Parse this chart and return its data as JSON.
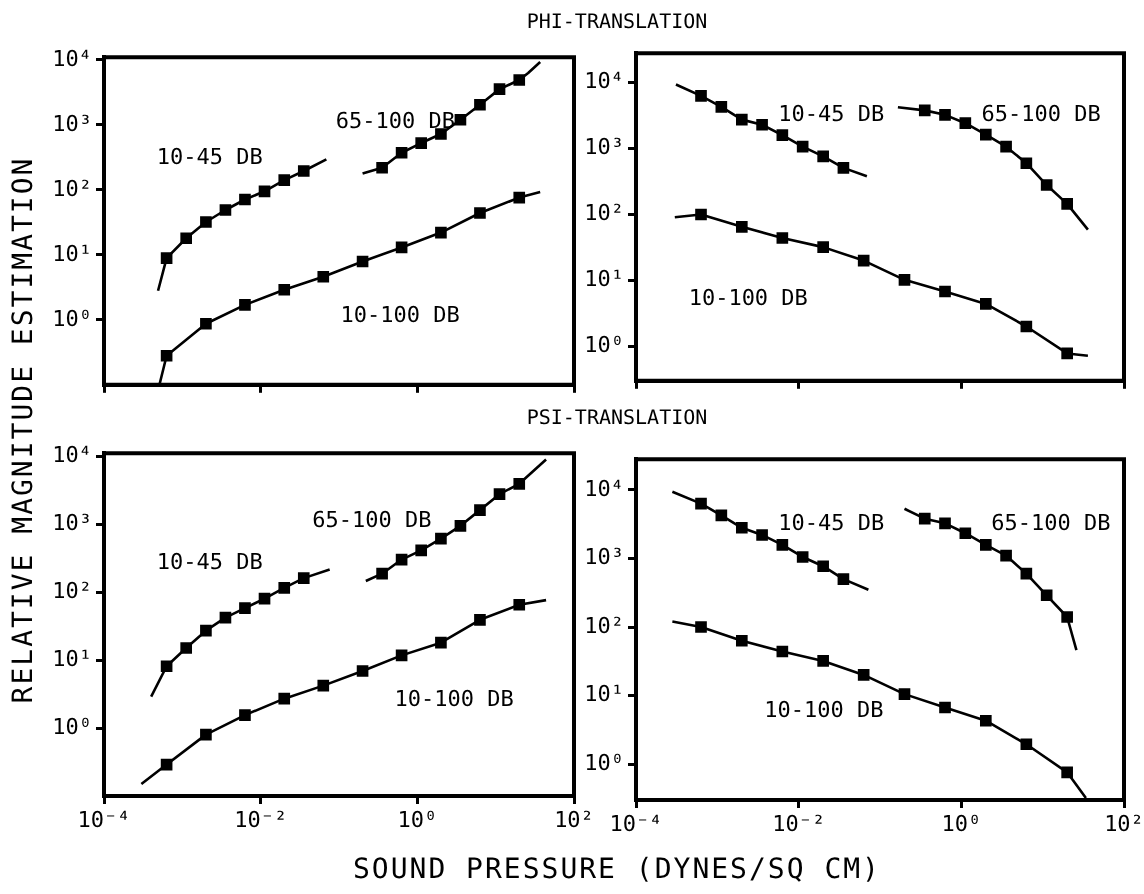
{
  "chart_data": [
    {
      "type": "scatter",
      "title": "PHI-TRANSLATION",
      "ylabel": "RELATIVE MAGNITUDE ESTIMATION",
      "log": "xy",
      "grid": false,
      "legend": false,
      "tick_labels": "y",
      "xlim": [
        0.0001,
        100
      ],
      "xticks": [
        {
          "value": 0.0001,
          "label": null
        },
        {
          "value": 0.01,
          "label": null
        },
        {
          "value": 1,
          "label": null
        },
        {
          "value": 100,
          "label": null
        }
      ],
      "ylim": [
        0.1,
        11000
      ],
      "yticks": [
        {
          "value": 1,
          "label": "10⁰"
        },
        {
          "value": 10,
          "label": "10¹"
        },
        {
          "value": 100,
          "label": "10²"
        },
        {
          "value": 1000,
          "label": "10³"
        },
        {
          "value": 10000,
          "label": "10⁴"
        }
      ],
      "series": [
        {
          "name": "10-45 DB",
          "marker": "square",
          "color": "#000000",
          "x": [
            0.00063,
            0.00112,
            0.002,
            0.00355,
            0.0063,
            0.0112,
            0.02,
            0.0355
          ],
          "values": [
            8.9,
            18,
            32,
            49,
            71,
            95,
            141,
            195
          ]
        },
        {
          "type": "line",
          "marker": "none",
          "color": "#000000",
          "x": [
            0.00049,
            0.00063,
            0.00112,
            0.002,
            0.00355,
            0.0063,
            0.0112,
            0.02,
            0.0355,
            0.069
          ],
          "values": [
            2.8,
            8.9,
            18,
            32,
            49,
            71,
            95,
            141,
            195,
            295
          ]
        },
        {
          "name": "65-100 DB",
          "marker": "square",
          "color": "#000000",
          "x": [
            0.355,
            0.63,
            1.12,
            2,
            3.55,
            6.3,
            11.2,
            20
          ],
          "values": [
            219,
            372,
            525,
            724,
            1200,
            2040,
            3550,
            4900
          ]
        },
        {
          "type": "line",
          "marker": "none",
          "color": "#000000",
          "x": [
            0.2,
            0.355,
            0.63,
            1.12,
            2,
            3.55,
            6.3,
            11.2,
            20,
            26,
            37
          ],
          "values": [
            178,
            219,
            372,
            525,
            724,
            1200,
            2040,
            3550,
            4900,
            6300,
            9300
          ]
        },
        {
          "name": "10-100 DB",
          "marker": "square",
          "color": "#000000",
          "x": [
            0.00063,
            0.002,
            0.0063,
            0.02,
            0.063,
            0.2,
            0.63,
            2,
            6.3,
            20
          ],
          "values": [
            0.28,
            0.87,
            1.7,
            2.9,
            4.6,
            7.9,
            13,
            22,
            44,
            76
          ]
        },
        {
          "type": "line",
          "marker": "none",
          "color": "#000000",
          "x": [
            0.00051,
            0.00063,
            0.002,
            0.0063,
            0.02,
            0.063,
            0.2,
            0.63,
            2,
            6.3,
            20,
            37
          ],
          "values": [
            0.1,
            0.28,
            0.87,
            1.7,
            2.9,
            4.6,
            7.9,
            13,
            22,
            44,
            76,
            93
          ]
        }
      ]
    },
    {
      "type": "scatter",
      "log": "xy",
      "grid": false,
      "legend": false,
      "tick_labels": "y",
      "xlim": [
        0.0001,
        100
      ],
      "xticks": [
        {
          "value": 0.0001,
          "label": null
        },
        {
          "value": 0.01,
          "label": null
        },
        {
          "value": 1,
          "label": null
        },
        {
          "value": 100,
          "label": null
        }
      ],
      "ylim": [
        0.3,
        28000
      ],
      "yticks": [
        {
          "value": 1,
          "label": "10⁰"
        },
        {
          "value": 10,
          "label": "10¹"
        },
        {
          "value": 100,
          "label": "10²"
        },
        {
          "value": 1000,
          "label": "10³"
        },
        {
          "value": 10000,
          "label": "10⁴"
        }
      ],
      "series": [
        {
          "name": "10-45 DB",
          "marker": "square",
          "color": "#000000",
          "x": [
            0.00063,
            0.00112,
            0.002,
            0.00355,
            0.0063,
            0.0112,
            0.02,
            0.0355
          ],
          "values": [
            6300,
            4300,
            2750,
            2300,
            1600,
            1070,
            760,
            510
          ]
        },
        {
          "type": "line",
          "marker": "none",
          "color": "#000000",
          "x": [
            0.00031,
            0.00063,
            0.00112,
            0.002,
            0.00355,
            0.0063,
            0.0112,
            0.02,
            0.0355,
            0.069
          ],
          "values": [
            9400,
            6300,
            4300,
            2750,
            2300,
            1600,
            1070,
            760,
            510,
            380
          ]
        },
        {
          "name": "65-100 DB",
          "marker": "square",
          "color": "#000000",
          "x": [
            0.355,
            0.63,
            1.12,
            2,
            3.55,
            6.3,
            11.2,
            20
          ],
          "values": [
            3800,
            3250,
            2430,
            1630,
            1070,
            600,
            280,
            145
          ]
        },
        {
          "type": "line",
          "marker": "none",
          "color": "#000000",
          "x": [
            0.166,
            0.355,
            0.63,
            1.12,
            2,
            3.55,
            6.3,
            11.2,
            20,
            36
          ],
          "values": [
            4250,
            3800,
            3250,
            2430,
            1630,
            1070,
            600,
            280,
            145,
            59
          ]
        },
        {
          "name": "10-100 DB",
          "marker": "square",
          "color": "#000000",
          "x": [
            0.00063,
            0.002,
            0.0063,
            0.02,
            0.063,
            0.2,
            0.63,
            2,
            6.3,
            20
          ],
          "values": [
            100,
            65,
            44,
            32,
            20,
            10.2,
            6.8,
            4.4,
            2.0,
            0.78
          ]
        },
        {
          "type": "line",
          "marker": "none",
          "color": "#000000",
          "x": [
            0.0003,
            0.00063,
            0.002,
            0.0063,
            0.02,
            0.063,
            0.2,
            0.63,
            2,
            6.3,
            20,
            36
          ],
          "values": [
            91,
            100,
            65,
            44,
            32,
            20,
            10.2,
            6.8,
            4.4,
            2.0,
            0.78,
            0.72
          ]
        }
      ]
    },
    {
      "type": "scatter",
      "title": "PSI-TRANSLATION",
      "xlabel": "SOUND PRESSURE (DYNES/SQ CM)",
      "log": "xy",
      "grid": false,
      "legend": false,
      "xlim": [
        0.0001,
        100
      ],
      "xticks": [
        {
          "value": 0.0001,
          "label": "10⁻⁴"
        },
        {
          "value": 0.01,
          "label": "10⁻²"
        },
        {
          "value": 1,
          "label": "10⁰"
        },
        {
          "value": 100,
          "label": "10²"
        }
      ],
      "ylim": [
        0.1,
        11000
      ],
      "yticks": [
        {
          "value": 1,
          "label": "10⁰"
        },
        {
          "value": 10,
          "label": "10¹"
        },
        {
          "value": 100,
          "label": "10²"
        },
        {
          "value": 1000,
          "label": "10³"
        },
        {
          "value": 10000,
          "label": "10⁴"
        }
      ],
      "series": [
        {
          "name": "10-45 DB",
          "marker": "square",
          "color": "#000000",
          "x": [
            0.00063,
            0.00112,
            0.002,
            0.00355,
            0.0063,
            0.0112,
            0.02,
            0.0355
          ],
          "values": [
            8.1,
            15,
            27,
            42,
            58,
            80,
            115,
            160
          ]
        },
        {
          "type": "line",
          "marker": "none",
          "color": "#000000",
          "x": [
            0.0004,
            0.00063,
            0.00112,
            0.002,
            0.00355,
            0.0063,
            0.0112,
            0.02,
            0.0355,
            0.076
          ],
          "values": [
            2.9,
            8.1,
            15,
            27,
            42,
            58,
            80,
            115,
            160,
            214
          ]
        },
        {
          "name": "65-100 DB",
          "marker": "square",
          "color": "#000000",
          "x": [
            0.355,
            0.63,
            1.12,
            2,
            3.55,
            6.3,
            11.2,
            20
          ],
          "values": [
            186,
            300,
            410,
            610,
            940,
            1600,
            2750,
            3900
          ]
        },
        {
          "type": "line",
          "marker": "none",
          "color": "#000000",
          "x": [
            0.22,
            0.355,
            0.63,
            1.12,
            2,
            3.55,
            6.3,
            11.2,
            20,
            44
          ],
          "values": [
            145,
            186,
            300,
            410,
            610,
            940,
            1600,
            2750,
            3900,
            8900
          ]
        },
        {
          "name": "10-100 DB",
          "marker": "square",
          "color": "#000000",
          "x": [
            0.00063,
            0.002,
            0.0063,
            0.02,
            0.063,
            0.2,
            0.63,
            2,
            6.3,
            20
          ],
          "values": [
            0.29,
            0.8,
            1.55,
            2.7,
            4.2,
            6.9,
            11.7,
            18,
            39,
            65
          ]
        },
        {
          "type": "line",
          "marker": "none",
          "color": "#000000",
          "x": [
            0.0003,
            0.00063,
            0.002,
            0.0063,
            0.02,
            0.063,
            0.2,
            0.63,
            2,
            6.3,
            20,
            44
          ],
          "values": [
            0.15,
            0.29,
            0.8,
            1.55,
            2.7,
            4.2,
            6.9,
            11.7,
            18,
            39,
            65,
            76
          ]
        }
      ]
    },
    {
      "type": "scatter",
      "log": "xy",
      "grid": false,
      "legend": false,
      "xlim": [
        0.0001,
        100
      ],
      "xticks": [
        {
          "value": 0.0001,
          "label": "10⁻⁴"
        },
        {
          "value": 0.01,
          "label": "10⁻²"
        },
        {
          "value": 1,
          "label": "10⁰"
        },
        {
          "value": 100,
          "label": "10²"
        }
      ],
      "ylim": [
        0.3,
        28000
      ],
      "yticks": [
        {
          "value": 1,
          "label": "10⁰"
        },
        {
          "value": 10,
          "label": "10¹"
        },
        {
          "value": 100,
          "label": "10²"
        },
        {
          "value": 1000,
          "label": "10³"
        },
        {
          "value": 10000,
          "label": "10⁴"
        }
      ],
      "series": [
        {
          "name": "10-45 DB",
          "marker": "square",
          "color": "#000000",
          "x": [
            0.00063,
            0.00112,
            0.002,
            0.00355,
            0.0063,
            0.0112,
            0.02,
            0.0355
          ],
          "values": [
            6300,
            4250,
            2800,
            2200,
            1580,
            1050,
            770,
            500
          ]
        },
        {
          "type": "line",
          "marker": "none",
          "color": "#000000",
          "x": [
            0.00028,
            0.00063,
            0.00112,
            0.002,
            0.00355,
            0.0063,
            0.0112,
            0.02,
            0.0355,
            0.072
          ],
          "values": [
            9400,
            6300,
            4250,
            2800,
            2200,
            1580,
            1050,
            770,
            500,
            350
          ]
        },
        {
          "name": "65-100 DB",
          "marker": "square",
          "color": "#000000",
          "x": [
            0.355,
            0.63,
            1.12,
            2,
            3.55,
            6.3,
            11.2,
            20
          ],
          "values": [
            3800,
            3250,
            2330,
            1580,
            1100,
            600,
            290,
            140
          ]
        },
        {
          "type": "line",
          "marker": "none",
          "color": "#000000",
          "x": [
            0.2,
            0.355,
            0.63,
            1.12,
            2,
            3.55,
            6.3,
            11.2,
            20,
            26
          ],
          "values": [
            5300,
            3800,
            3250,
            2330,
            1580,
            1100,
            600,
            290,
            140,
            46
          ]
        },
        {
          "name": "10-100 DB",
          "marker": "square",
          "color": "#000000",
          "x": [
            0.00063,
            0.002,
            0.0063,
            0.02,
            0.063,
            0.2,
            0.63,
            2,
            6.3,
            20
          ],
          "values": [
            100,
            63,
            44,
            32,
            20,
            10.5,
            6.7,
            4.3,
            1.95,
            0.76
          ]
        },
        {
          "type": "line",
          "marker": "none",
          "color": "#000000",
          "x": [
            0.00028,
            0.00063,
            0.002,
            0.0063,
            0.02,
            0.063,
            0.2,
            0.63,
            2,
            6.3,
            20,
            34
          ],
          "values": [
            120,
            100,
            63,
            44,
            32,
            20,
            10.5,
            6.7,
            4.3,
            1.95,
            0.76,
            0.32
          ]
        }
      ]
    }
  ]
}
